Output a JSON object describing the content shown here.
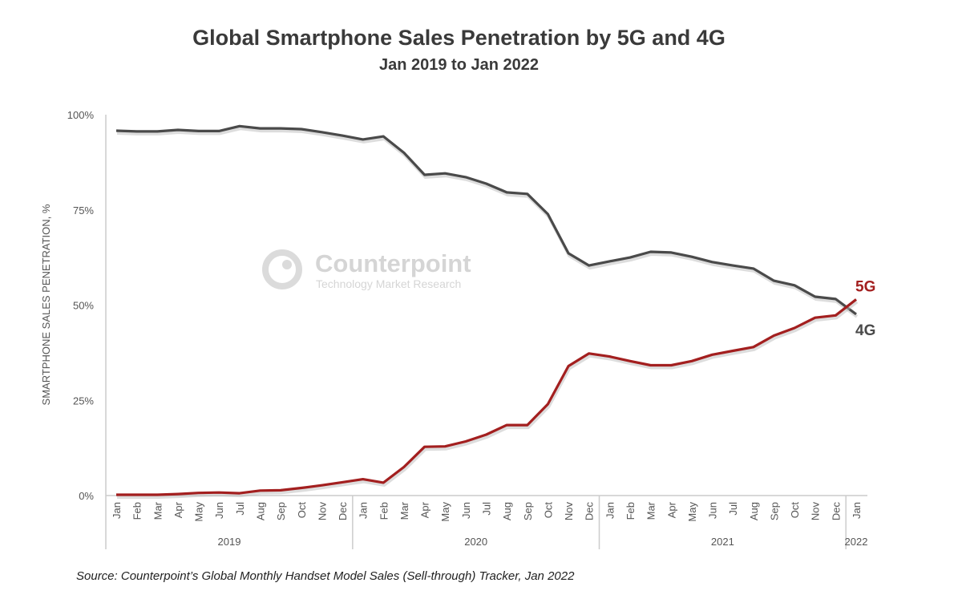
{
  "chart_data": {
    "type": "line",
    "title": "Global Smartphone Sales Penetration by 5G and 4G",
    "subtitle": "Jan 2019 to Jan 2022",
    "ylabel": "SMARTPHONE SALES PENETRATION, %",
    "xlabel": "",
    "ylim": [
      0,
      100
    ],
    "yticks": [
      "0%",
      "25%",
      "50%",
      "75%",
      "100%"
    ],
    "ytick_values": [
      0,
      25,
      50,
      75,
      100
    ],
    "grid": false,
    "categories": [
      "Jan",
      "Feb",
      "Mar",
      "Apr",
      "May",
      "Jun",
      "Jul",
      "Aug",
      "Sep",
      "Oct",
      "Nov",
      "Dec",
      "Jan",
      "Feb",
      "Mar",
      "Apr",
      "May",
      "Jun",
      "Jul",
      "Aug",
      "Sep",
      "Oct",
      "Nov",
      "Dec",
      "Jan",
      "Feb",
      "Mar",
      "Apr",
      "May",
      "Jun",
      "Jul",
      "Aug",
      "Sep",
      "Oct",
      "Nov",
      "Dec",
      "Jan"
    ],
    "years": [
      {
        "label": "2019",
        "months": 12
      },
      {
        "label": "2020",
        "months": 12
      },
      {
        "label": "2021",
        "months": 12
      },
      {
        "label": "2022",
        "months": 1
      }
    ],
    "series": [
      {
        "name": "4G",
        "color": "#4a4a4a",
        "values": [
          95.8,
          95.6,
          95.6,
          96.0,
          95.7,
          95.7,
          97.0,
          96.4,
          96.4,
          96.2,
          95.4,
          94.5,
          93.5,
          94.3,
          90.0,
          84.2,
          84.6,
          83.6,
          81.9,
          79.6,
          79.2,
          73.9,
          63.6,
          60.4,
          61.5,
          62.5,
          64.0,
          63.8,
          62.7,
          61.3,
          60.4,
          59.6,
          56.4,
          55.2,
          52.2,
          51.6,
          47.6
        ]
      },
      {
        "name": "5G",
        "color": "#a31f1f",
        "values": [
          0.2,
          0.2,
          0.2,
          0.4,
          0.7,
          0.8,
          0.6,
          1.3,
          1.4,
          2.0,
          2.7,
          3.5,
          4.3,
          3.4,
          7.5,
          12.8,
          12.9,
          14.2,
          16.0,
          18.5,
          18.5,
          24.0,
          34.0,
          37.3,
          36.5,
          35.3,
          34.2,
          34.2,
          35.3,
          37.0,
          38.0,
          39.0,
          42.0,
          44.0,
          46.7,
          47.3,
          51.5
        ]
      }
    ]
  },
  "watermark": {
    "brand": "Counterpoint",
    "tagline": "Technology Market Research"
  },
  "source": "Source: Counterpoint’s Global Monthly Handset Model Sales (Sell-through) Tracker, Jan 2022"
}
